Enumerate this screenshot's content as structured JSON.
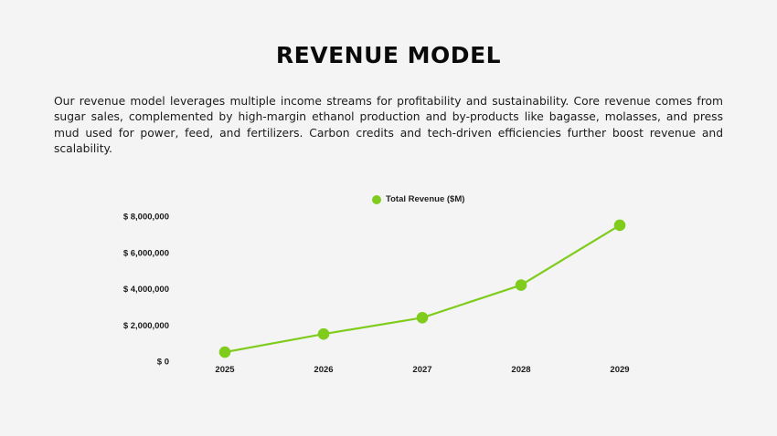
{
  "page": {
    "title": "REVENUE MODEL",
    "description": "Our revenue model leverages multiple income streams for profitability and sustainability. Core revenue comes from sugar sales, complemented by high-margin ethanol production and by-products like bagasse, molasses, and press mud used for power, feed, and fertilizers. Carbon credits and tech-driven efficiencies further boost revenue and scalability."
  },
  "colors": {
    "background": "#f4f4f4",
    "accent": "#7fcc1d"
  },
  "chart_data": {
    "type": "line",
    "title": "",
    "xlabel": "",
    "ylabel": "",
    "categories": [
      "2025",
      "2026",
      "2027",
      "2028",
      "2029"
    ],
    "series": [
      {
        "name": "Total Revenue ($M)",
        "color": "#7fcc1d",
        "values": [
          500000,
          1500000,
          2400000,
          4200000,
          7500000
        ]
      }
    ],
    "y_ticks": [
      0,
      2000000,
      4000000,
      6000000,
      8000000
    ],
    "y_tick_labels": [
      "$ 0",
      "$ 2,000,000",
      "$ 4,000,000",
      "$ 6,000,000",
      "$ 8,000,000"
    ],
    "ylim": [
      0,
      8000000
    ],
    "grid": false,
    "legend_position": "top",
    "markers": true
  }
}
